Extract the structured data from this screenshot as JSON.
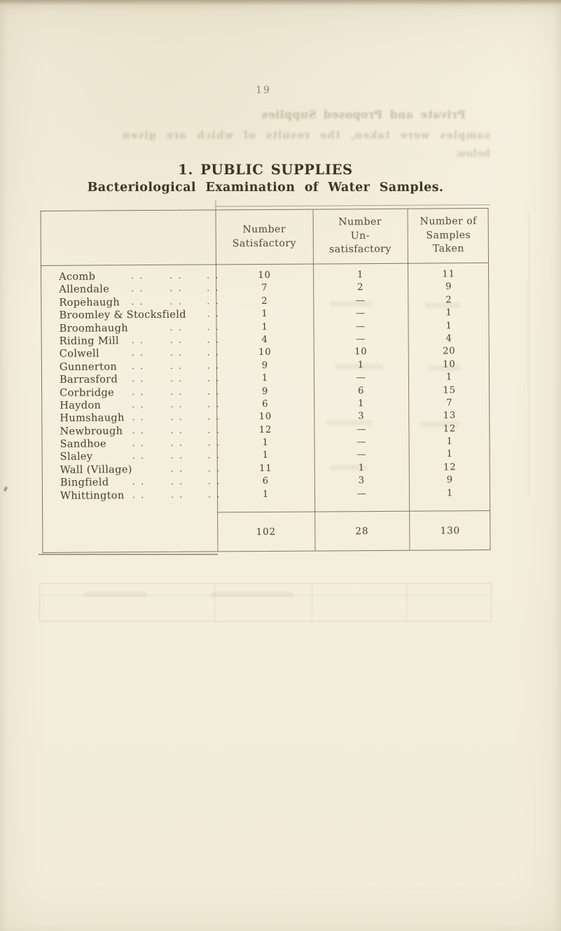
{
  "page": {
    "number": "19",
    "title": "1. PUBLIC SUPPLIES",
    "subtitle": "Bacteriological Examination of Water Samples."
  },
  "table": {
    "header": {
      "name": "",
      "satisfactory": [
        "Number",
        "Satisfactory"
      ],
      "unsatisfactory": [
        "Number",
        "Un-",
        "satisfactory"
      ],
      "samples": [
        "Number of",
        "Samples",
        "Taken"
      ]
    },
    "rows": [
      {
        "name": "Acomb",
        "satisfactory": "10",
        "unsatisfactory": "1",
        "samples": "11"
      },
      {
        "name": "Allendale",
        "satisfactory": "7",
        "unsatisfactory": "2",
        "samples": "9"
      },
      {
        "name": "Ropehaugh",
        "satisfactory": "2",
        "unsatisfactory": "—",
        "samples": "2"
      },
      {
        "name": "Broomley & Stocksfield",
        "satisfactory": "1",
        "unsatisfactory": "—",
        "samples": "1"
      },
      {
        "name": "Broomhaugh",
        "satisfactory": "1",
        "unsatisfactory": "—",
        "samples": "1"
      },
      {
        "name": "Riding Mill",
        "satisfactory": "4",
        "unsatisfactory": "—",
        "samples": "4"
      },
      {
        "name": "Colwell",
        "satisfactory": "10",
        "unsatisfactory": "10",
        "samples": "20"
      },
      {
        "name": "Gunnerton",
        "satisfactory": "9",
        "unsatisfactory": "1",
        "samples": "10"
      },
      {
        "name": "Barrasford",
        "satisfactory": "1",
        "unsatisfactory": "—",
        "samples": "1"
      },
      {
        "name": "Corbridge",
        "satisfactory": "9",
        "unsatisfactory": "6",
        "samples": "15"
      },
      {
        "name": "Haydon",
        "satisfactory": "6",
        "unsatisfactory": "1",
        "samples": "7"
      },
      {
        "name": "Humshaugh",
        "satisfactory": "10",
        "unsatisfactory": "3",
        "samples": "13"
      },
      {
        "name": "Newbrough",
        "satisfactory": "12",
        "unsatisfactory": "—",
        "samples": "12"
      },
      {
        "name": "Sandhoe",
        "satisfactory": "1",
        "unsatisfactory": "—",
        "samples": "1"
      },
      {
        "name": "Slaley",
        "satisfactory": "1",
        "unsatisfactory": "—",
        "samples": "1"
      },
      {
        "name": "Wall (Village)",
        "satisfactory": "11",
        "unsatisfactory": "1",
        "samples": "12"
      },
      {
        "name": "Bingfield",
        "satisfactory": "6",
        "unsatisfactory": "3",
        "samples": "9"
      },
      {
        "name": "Whittington",
        "satisfactory": "1",
        "unsatisfactory": "—",
        "samples": "1"
      }
    ],
    "totals": {
      "satisfactory": "102",
      "unsatisfactory": "28",
      "samples": "130"
    }
  },
  "bleed_through": {
    "heading": "Private and Proposed Supplies",
    "line2": "samples were taken, the results of which are given",
    "line3": "below."
  },
  "colors": {
    "paper": "#f4efdd",
    "ink": "#43392a",
    "rule": "#685940"
  }
}
